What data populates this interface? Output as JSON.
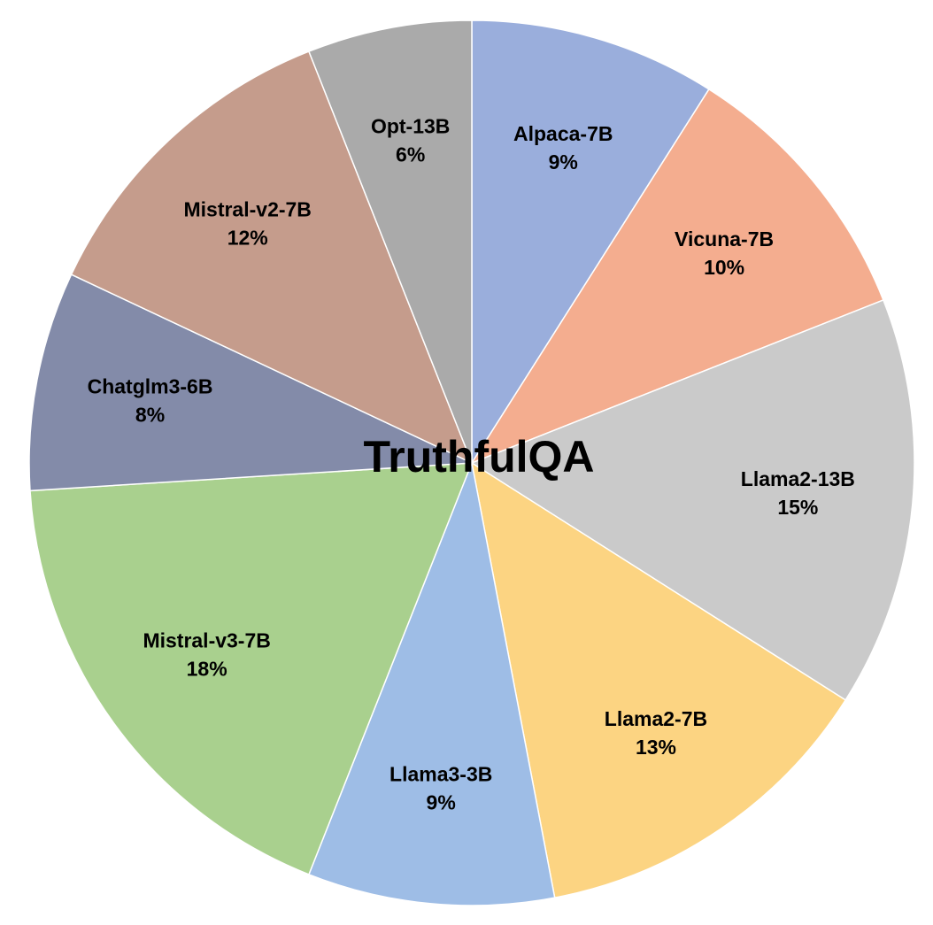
{
  "chart_data": {
    "type": "pie",
    "title": "TruthfulQA",
    "categories": [
      "Alpaca-7B",
      "Vicuna-7B",
      "Llama2-13B",
      "Llama2-7B",
      "Llama3-3B",
      "Mistral-v3-7B",
      "Chatglm3-6B",
      "Mistral-v2-7B",
      "Opt-13B"
    ],
    "values": [
      9,
      10,
      15,
      13,
      9,
      18,
      8,
      12,
      6
    ],
    "value_labels": [
      "9%",
      "10%",
      "15%",
      "13%",
      "9%",
      "18%",
      "8%",
      "12%",
      "6%"
    ],
    "colors": [
      "#9aaedc",
      "#f4ad8f",
      "#cacaca",
      "#fcd482",
      "#9ebde6",
      "#a9d08e",
      "#838ba9",
      "#c59c8c",
      "#aaaaaa"
    ],
    "start_angle": 0,
    "direction": "clockwise"
  }
}
